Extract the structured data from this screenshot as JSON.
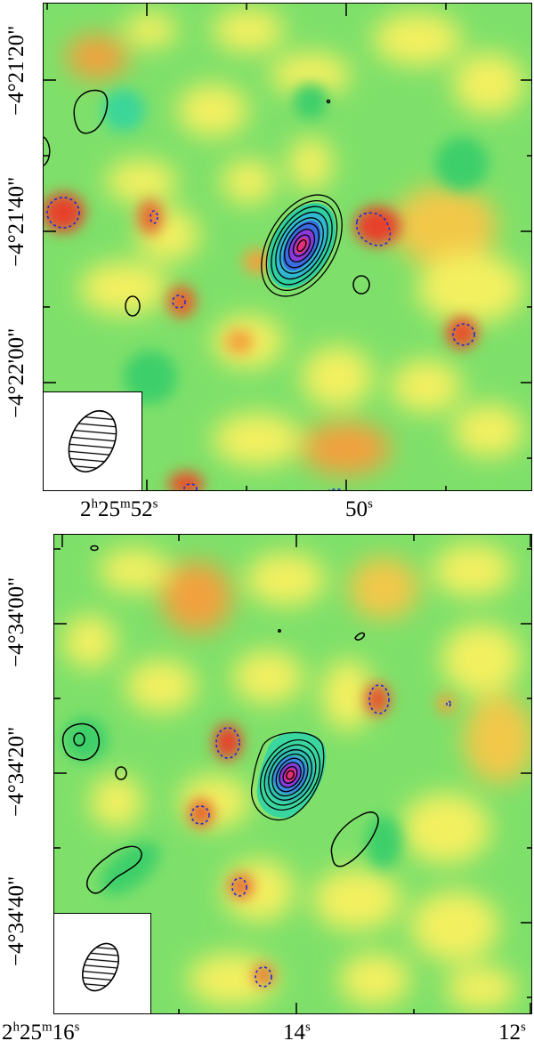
{
  "panels": [
    {
      "id": "top",
      "y_ticks": [
        "−4°21'20\"",
        "−4°21'40\"",
        "−4°22'00\""
      ],
      "x_ticks": [
        {
          "h": "2",
          "m": "25",
          "s": "52"
        },
        {
          "s": "50"
        }
      ]
    },
    {
      "id": "bottom",
      "y_ticks": [
        "−4°34'00\"",
        "−4°34'20\"",
        "−4°34'40\""
      ],
      "x_ticks": [
        {
          "h": "2",
          "m": "25",
          "s": "16"
        },
        {
          "s": "14"
        },
        {
          "s": "12"
        }
      ]
    }
  ],
  "units": {
    "h": "h",
    "m": "m",
    "s": "s"
  },
  "colors": {
    "background_green": "#5ad55a",
    "yellow": "#f3f060",
    "orange": "#f2a13c",
    "red": "#e8402a",
    "contour_positive": "#000000",
    "contour_negative": "#1a2bd6"
  }
}
